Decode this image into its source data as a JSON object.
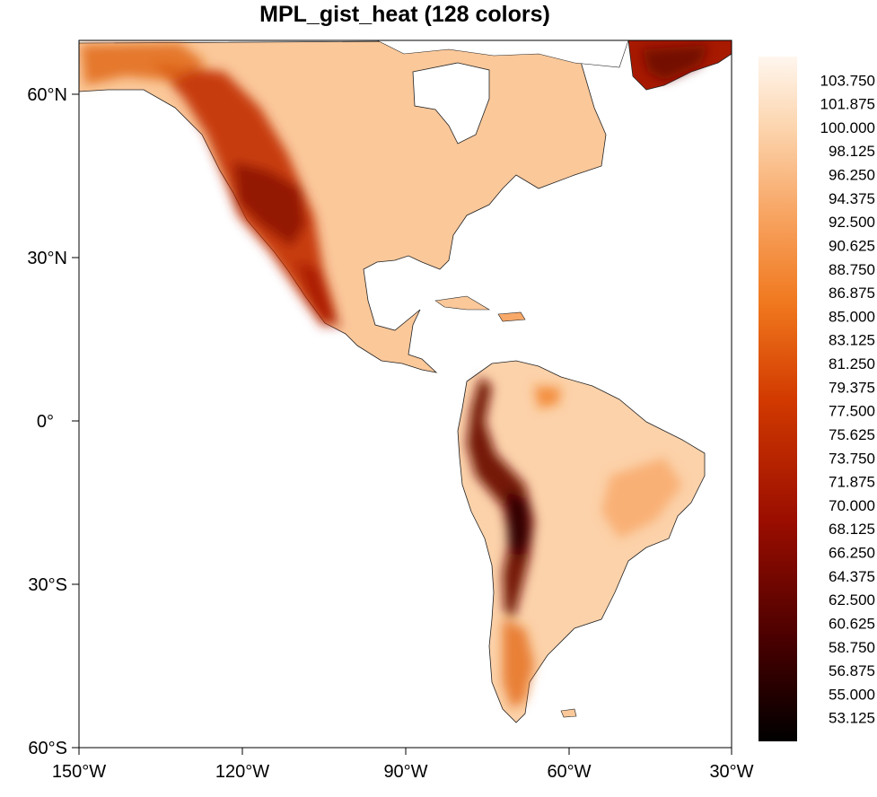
{
  "chart_data": {
    "type": "heatmap",
    "title": "MPL_gist_heat (128 colors)",
    "colormap": "MPL_gist_heat",
    "x_ticks": [
      "150°W",
      "120°W",
      "90°W",
      "60°W",
      "30°W"
    ],
    "y_ticks": [
      "60°N",
      "30°N",
      "0°",
      "30°S",
      "60°S"
    ],
    "lon_range": [
      -150,
      -30
    ],
    "lat_range": [
      -60,
      70
    ],
    "colorbar_labels": [
      "103.750",
      "101.875",
      "100.000",
      "98.125",
      "96.250",
      "94.375",
      "92.500",
      "90.625",
      "88.750",
      "86.875",
      "85.000",
      "83.125",
      "81.250",
      "79.375",
      "77.500",
      "75.625",
      "73.750",
      "71.875",
      "70.000",
      "68.125",
      "66.250",
      "64.375",
      "62.500",
      "60.625",
      "58.750",
      "56.875",
      "55.000",
      "53.125"
    ],
    "colorbar_range": [
      51.25,
      105.625
    ],
    "colors": [
      "#000000",
      "#4a0000",
      "#9a0d00",
      "#d23a00",
      "#f0781e",
      "#f8a868",
      "#fcd6b0",
      "#fff6ee"
    ]
  }
}
